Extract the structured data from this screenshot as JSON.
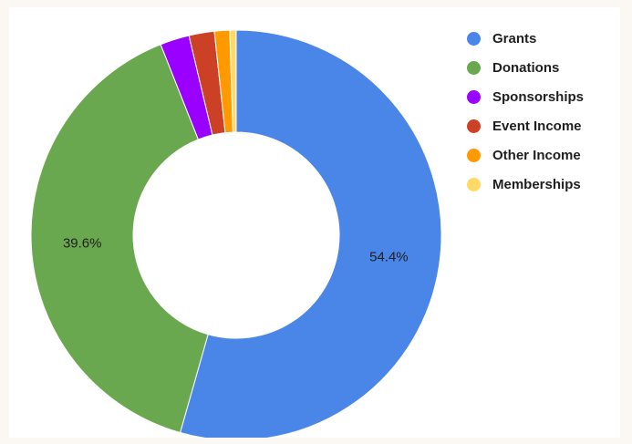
{
  "chart_data": {
    "type": "pie",
    "variant": "donut",
    "title": "",
    "categories": [
      "Grants",
      "Donations",
      "Sponsorships",
      "Event Income",
      "Other Income",
      "Memberships"
    ],
    "values": [
      54.4,
      39.6,
      2.3,
      2.0,
      1.2,
      0.5
    ],
    "unit": "%",
    "colors": [
      "#4a86e8",
      "#6aa84f",
      "#9900ff",
      "#cc4125",
      "#ff9900",
      "#ffd966"
    ],
    "data_labels": [
      "54.4%",
      "39.6%",
      "",
      "",
      "",
      ""
    ],
    "legend_position": "right",
    "start_angle": "12 o'clock",
    "direction": "clockwise"
  }
}
